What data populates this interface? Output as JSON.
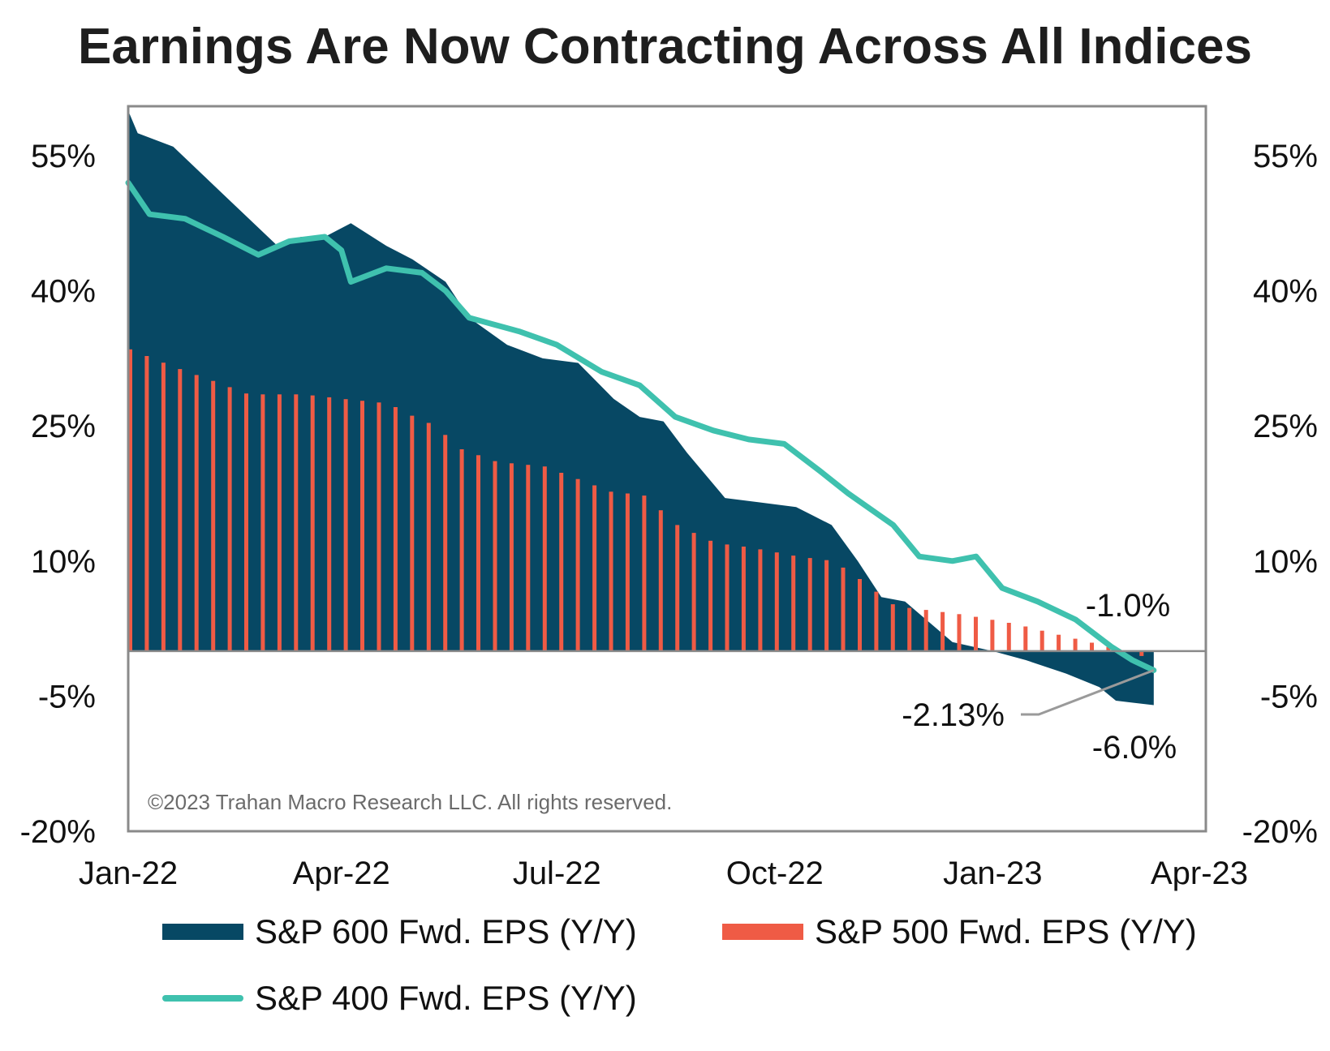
{
  "title": "Earnings Are Now Contracting Across All Indices",
  "copyright": "©2023 Trahan Macro Research LLC. All rights reserved.",
  "colors": {
    "sp600": "#074864",
    "sp500": "#ef5b45",
    "sp400": "#3fc1ae",
    "frame": "#8a8a8a"
  },
  "chart_data": {
    "type": "area",
    "x_ticks": [
      "Jan-22",
      "Apr-22",
      "Jul-22",
      "Oct-22",
      "Jan-23",
      "Apr-23"
    ],
    "x_range": [
      "2022-01-01",
      "2023-04-01"
    ],
    "y_ticks_left": [
      "55%",
      "40%",
      "25%",
      "10%",
      "-5%",
      "-20%"
    ],
    "y_ticks_right": [
      "55%",
      "40%",
      "25%",
      "10%",
      "-5%",
      "-20%"
    ],
    "y_ticks_right_values": [
      55,
      40,
      25,
      10,
      -5,
      -20
    ],
    "ylim": [
      -20,
      60
    ],
    "legend": [
      "S&P 600 Fwd. EPS (Y/Y)",
      "S&P 500 Fwd. EPS (Y/Y)",
      "S&P 400 Fwd. EPS (Y/Y)"
    ],
    "series": [
      {
        "name": "S&P 600 Fwd. EPS (Y/Y)",
        "style": "area",
        "points": [
          [
            "2022-01-01",
            60
          ],
          [
            "2022-01-05",
            57.5
          ],
          [
            "2022-01-20",
            56
          ],
          [
            "2022-02-01",
            53
          ],
          [
            "2022-02-15",
            49.5
          ],
          [
            "2022-03-01",
            46
          ],
          [
            "2022-03-05",
            45
          ],
          [
            "2022-03-15",
            46
          ],
          [
            "2022-03-25",
            46
          ],
          [
            "2022-04-05",
            47.5
          ],
          [
            "2022-04-20",
            45
          ],
          [
            "2022-05-01",
            43.5
          ],
          [
            "2022-05-15",
            41
          ],
          [
            "2022-05-25",
            37
          ],
          [
            "2022-06-10",
            34
          ],
          [
            "2022-06-25",
            32.5
          ],
          [
            "2022-07-10",
            32
          ],
          [
            "2022-07-25",
            28
          ],
          [
            "2022-08-05",
            26
          ],
          [
            "2022-08-15",
            25.5
          ],
          [
            "2022-08-25",
            22
          ],
          [
            "2022-09-10",
            17
          ],
          [
            "2022-09-25",
            16.5
          ],
          [
            "2022-10-10",
            16
          ],
          [
            "2022-10-25",
            14
          ],
          [
            "2022-11-05",
            10
          ],
          [
            "2022-11-15",
            6
          ],
          [
            "2022-11-25",
            5.5
          ],
          [
            "2022-12-15",
            1
          ],
          [
            "2023-01-01",
            0
          ],
          [
            "2023-01-15",
            -1
          ],
          [
            "2023-02-01",
            -2.5
          ],
          [
            "2023-02-15",
            -4
          ],
          [
            "2023-02-22",
            -5.5
          ],
          [
            "2023-03-10",
            -6
          ]
        ]
      },
      {
        "name": "S&P 500 Fwd. EPS (Y/Y)",
        "style": "bars",
        "points": [
          [
            "2022-01-01",
            33.5
          ],
          [
            "2022-01-20",
            31.5
          ],
          [
            "2022-02-05",
            30
          ],
          [
            "2022-02-20",
            28.5
          ],
          [
            "2022-03-15",
            28.5
          ],
          [
            "2022-04-01",
            28
          ],
          [
            "2022-04-20",
            27.5
          ],
          [
            "2022-05-01",
            26
          ],
          [
            "2022-05-10",
            25
          ],
          [
            "2022-05-20",
            22.5
          ],
          [
            "2022-06-05",
            21
          ],
          [
            "2022-06-25",
            20.5
          ],
          [
            "2022-07-15",
            18.5
          ],
          [
            "2022-07-25",
            17.5
          ],
          [
            "2022-08-05",
            17.5
          ],
          [
            "2022-08-20",
            14
          ],
          [
            "2022-09-05",
            12
          ],
          [
            "2022-09-20",
            11.5
          ],
          [
            "2022-10-10",
            10.5
          ],
          [
            "2022-10-25",
            10
          ],
          [
            "2022-11-05",
            8
          ],
          [
            "2022-11-20",
            5
          ],
          [
            "2022-12-05",
            4.5
          ],
          [
            "2022-12-20",
            4
          ],
          [
            "2023-01-10",
            3
          ],
          [
            "2023-01-25",
            2
          ],
          [
            "2023-02-10",
            1
          ],
          [
            "2023-02-25",
            0
          ],
          [
            "2023-03-10",
            -1
          ]
        ]
      },
      {
        "name": "S&P 400 Fwd. EPS (Y/Y)",
        "style": "line",
        "points": [
          [
            "2022-01-01",
            52
          ],
          [
            "2022-01-10",
            48.5
          ],
          [
            "2022-01-25",
            48
          ],
          [
            "2022-02-10",
            46
          ],
          [
            "2022-02-25",
            44
          ],
          [
            "2022-03-10",
            45.5
          ],
          [
            "2022-03-25",
            46
          ],
          [
            "2022-04-01",
            44.5
          ],
          [
            "2022-04-05",
            41
          ],
          [
            "2022-04-20",
            42.5
          ],
          [
            "2022-05-05",
            42
          ],
          [
            "2022-05-15",
            40
          ],
          [
            "2022-05-25",
            37
          ],
          [
            "2022-06-15",
            35.5
          ],
          [
            "2022-07-01",
            34
          ],
          [
            "2022-07-20",
            31
          ],
          [
            "2022-08-05",
            29.5
          ],
          [
            "2022-08-20",
            26
          ],
          [
            "2022-09-05",
            24.5
          ],
          [
            "2022-09-20",
            23.5
          ],
          [
            "2022-10-05",
            23
          ],
          [
            "2022-10-20",
            20
          ],
          [
            "2022-11-01",
            17.5
          ],
          [
            "2022-11-20",
            14
          ],
          [
            "2022-12-01",
            10.5
          ],
          [
            "2022-12-15",
            10
          ],
          [
            "2022-12-25",
            10.5
          ],
          [
            "2023-01-05",
            7
          ],
          [
            "2023-01-20",
            5.5
          ],
          [
            "2023-02-05",
            3.5
          ],
          [
            "2023-02-20",
            0.5
          ],
          [
            "2023-03-01",
            -1
          ],
          [
            "2023-03-10",
            -2.13
          ]
        ]
      }
    ],
    "annotations": [
      {
        "text": "-1.0%",
        "x": "2023-03-10",
        "y": -1.0
      },
      {
        "text": "-2.13%",
        "x": "2023-03-10",
        "y": -2.13
      },
      {
        "text": "-6.0%",
        "x": "2023-03-10",
        "y": -6.0
      }
    ]
  }
}
